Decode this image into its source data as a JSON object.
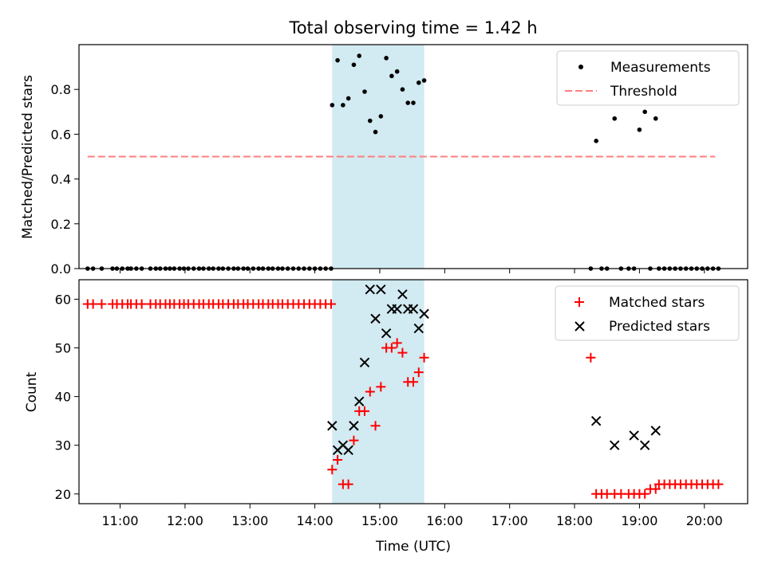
{
  "figure": {
    "title": "Total observing time = 1.42 h"
  },
  "chart_data": [
    {
      "type": "scatter",
      "panel": "top",
      "title": "Total observing time = 1.42 h",
      "xlabel": "",
      "ylabel": "Matched/Predicted stars",
      "xlim": [
        "10:22",
        "20:40"
      ],
      "ylim": [
        0.0,
        1.0
      ],
      "yticks": [
        0.0,
        0.2,
        0.4,
        0.6,
        0.8
      ],
      "ytick_labels": [
        "0.0",
        "0.2",
        "0.4",
        "0.6",
        "0.8"
      ],
      "legend": {
        "placement": "top-right"
      },
      "shaded_interval": {
        "x": [
          "14:16",
          "15:41"
        ],
        "color": "#add8e6"
      },
      "series": [
        {
          "name": "Measurements",
          "kind": "scatter",
          "color": "#000000",
          "x": [
            "10:30",
            "10:35",
            "10:43",
            "10:53",
            "10:57",
            "11:02",
            "11:07",
            "11:10",
            "11:15",
            "11:20",
            "11:28",
            "11:33",
            "11:37",
            "11:42",
            "11:46",
            "11:50",
            "11:55",
            "11:59",
            "12:03",
            "12:08",
            "12:13",
            "12:17",
            "12:22",
            "12:26",
            "12:31",
            "12:35",
            "12:40",
            "12:45",
            "12:49",
            "12:54",
            "12:58",
            "13:03",
            "13:08",
            "13:12",
            "13:17",
            "13:21",
            "13:26",
            "13:30",
            "13:35",
            "13:40",
            "13:45",
            "13:50",
            "13:55",
            "14:00",
            "14:05",
            "14:10",
            "14:15",
            "14:16",
            "14:21",
            "14:26",
            "14:31",
            "14:36",
            "14:41",
            "14:46",
            "14:51",
            "14:56",
            "15:01",
            "15:06",
            "15:11",
            "15:16",
            "15:21",
            "15:26",
            "15:31",
            "15:36",
            "15:41",
            "18:15",
            "18:20",
            "18:25",
            "18:30",
            "18:37",
            "18:43",
            "18:50",
            "18:55",
            "19:00",
            "19:05",
            "19:10",
            "19:15",
            "19:18",
            "19:23",
            "19:28",
            "19:33",
            "19:38",
            "19:43",
            "19:48",
            "19:53",
            "19:58",
            "20:03",
            "20:08",
            "20:13"
          ],
          "y": [
            0,
            0,
            0,
            0,
            0,
            0,
            0,
            0,
            0,
            0,
            0,
            0,
            0,
            0,
            0,
            0,
            0,
            0,
            0,
            0,
            0,
            0,
            0,
            0,
            0,
            0,
            0,
            0,
            0,
            0,
            0,
            0,
            0,
            0,
            0,
            0,
            0,
            0,
            0,
            0,
            0,
            0,
            0,
            0,
            0,
            0,
            0,
            0.73,
            0.93,
            0.73,
            0.76,
            0.91,
            0.95,
            0.79,
            0.66,
            0.61,
            0.68,
            0.94,
            0.86,
            0.88,
            0.8,
            0.74,
            0.74,
            0.83,
            0.84,
            0,
            0.57,
            0,
            0,
            0.67,
            0,
            0,
            0,
            0.62,
            0.7,
            0,
            0.67,
            0,
            0,
            0,
            0,
            0,
            0,
            0,
            0,
            0,
            0,
            0,
            0
          ]
        },
        {
          "name": "Threshold",
          "kind": "line",
          "style": "dashed",
          "color": "#ff7f7f",
          "x": [
            "10:30",
            "20:10"
          ],
          "y": [
            0.5,
            0.5
          ]
        }
      ]
    },
    {
      "type": "scatter",
      "panel": "bottom",
      "xlabel": "Time (UTC)",
      "ylabel": "Count",
      "xlim": [
        "10:22",
        "20:40"
      ],
      "ylim": [
        18,
        64
      ],
      "xticks": [
        "11:00",
        "12:00",
        "13:00",
        "14:00",
        "15:00",
        "16:00",
        "17:00",
        "18:00",
        "19:00",
        "20:00"
      ],
      "yticks": [
        20,
        30,
        40,
        50,
        60
      ],
      "ytick_labels": [
        "20",
        "30",
        "40",
        "50",
        "60"
      ],
      "legend": {
        "placement": "top-right"
      },
      "shaded_interval": {
        "x": [
          "14:16",
          "15:41"
        ],
        "color": "#add8e6"
      },
      "series": [
        {
          "name": "Matched stars",
          "marker": "+",
          "color": "#ff0000",
          "x": [
            "10:30",
            "10:35",
            "10:43",
            "10:53",
            "10:57",
            "11:02",
            "11:07",
            "11:10",
            "11:15",
            "11:20",
            "11:28",
            "11:33",
            "11:37",
            "11:42",
            "11:46",
            "11:50",
            "11:55",
            "11:59",
            "12:03",
            "12:08",
            "12:13",
            "12:17",
            "12:22",
            "12:26",
            "12:31",
            "12:35",
            "12:40",
            "12:45",
            "12:49",
            "12:54",
            "12:58",
            "13:03",
            "13:08",
            "13:12",
            "13:17",
            "13:21",
            "13:26",
            "13:30",
            "13:35",
            "13:40",
            "13:45",
            "13:50",
            "13:55",
            "14:00",
            "14:05",
            "14:10",
            "14:15",
            "14:16",
            "14:21",
            "14:26",
            "14:31",
            "14:36",
            "14:41",
            "14:46",
            "14:51",
            "14:56",
            "15:01",
            "15:06",
            "15:11",
            "15:16",
            "15:21",
            "15:26",
            "15:31",
            "15:36",
            "15:41",
            "18:15",
            "18:20",
            "18:25",
            "18:30",
            "18:37",
            "18:43",
            "18:50",
            "18:55",
            "19:00",
            "19:05",
            "19:10",
            "19:15",
            "19:18",
            "19:23",
            "19:28",
            "19:33",
            "19:38",
            "19:43",
            "19:48",
            "19:53",
            "19:58",
            "20:03",
            "20:08",
            "20:13"
          ],
          "y": [
            59,
            59,
            59,
            59,
            59,
            59,
            59,
            59,
            59,
            59,
            59,
            59,
            59,
            59,
            59,
            59,
            59,
            59,
            59,
            59,
            59,
            59,
            59,
            59,
            59,
            59,
            59,
            59,
            59,
            59,
            59,
            59,
            59,
            59,
            59,
            59,
            59,
            59,
            59,
            59,
            59,
            59,
            59,
            59,
            59,
            59,
            59,
            25,
            27,
            22,
            22,
            31,
            37,
            37,
            41,
            34,
            42,
            50,
            50,
            51,
            49,
            43,
            43,
            45,
            48,
            48,
            20,
            20,
            20,
            20,
            20,
            20,
            20,
            20,
            20,
            21,
            21,
            22,
            22,
            22,
            22,
            22,
            22,
            22,
            22,
            22,
            22,
            22,
            22
          ]
        },
        {
          "name": "Predicted stars",
          "marker": "x",
          "color": "#000000",
          "x": [
            "14:16",
            "14:21",
            "14:26",
            "14:31",
            "14:36",
            "14:41",
            "14:46",
            "14:51",
            "14:56",
            "15:01",
            "15:06",
            "15:11",
            "15:16",
            "15:21",
            "15:26",
            "15:31",
            "15:36",
            "15:41",
            "18:20",
            "18:37",
            "18:55",
            "19:05",
            "19:15"
          ],
          "y": [
            34,
            29,
            30,
            29,
            34,
            39,
            47,
            62,
            56,
            62,
            53,
            58,
            58,
            61,
            58,
            58,
            54,
            57,
            35,
            30,
            32,
            30,
            33
          ]
        }
      ]
    }
  ]
}
